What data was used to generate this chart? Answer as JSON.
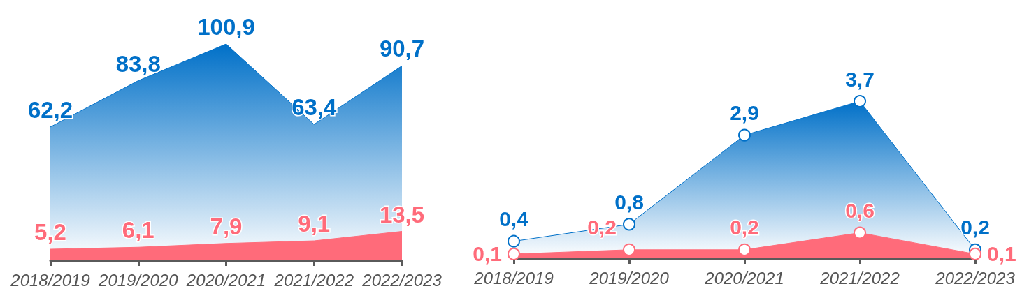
{
  "chart_data": [
    {
      "type": "area",
      "categories": [
        "2018/2019",
        "2019/2020",
        "2020/2021",
        "2021/2022",
        "2022/2023"
      ],
      "series": [
        {
          "color": "#0070c8",
          "values": [
            62.2,
            83.8,
            100.9,
            63.4,
            90.7
          ],
          "value_labels": [
            "62,2",
            "83,8",
            "100,9",
            "63,4",
            "90,7"
          ]
        },
        {
          "color": "#ff6b7a",
          "values": [
            5.2,
            6.1,
            7.9,
            9.1,
            13.5
          ],
          "value_labels": [
            "5,2",
            "6,1",
            "7,9",
            "9,1",
            "13,5"
          ]
        }
      ]
    },
    {
      "type": "area",
      "categories": [
        "2018/2019",
        "2019/2020",
        "2020/2021",
        "2021/2022",
        "2022/2023"
      ],
      "marker": "circle",
      "series": [
        {
          "color": "#0070c8",
          "values": [
            0.4,
            0.8,
            2.9,
            3.7,
            0.2
          ],
          "value_labels": [
            "0,4",
            "0,8",
            "2,9",
            "3,7",
            "0,2"
          ]
        },
        {
          "color": "#ff6b7a",
          "values": [
            0.1,
            0.2,
            0.2,
            0.6,
            0.1
          ],
          "value_labels": [
            "0,1",
            "0,2",
            "0,2",
            "0,6",
            "0,1"
          ]
        }
      ]
    }
  ]
}
